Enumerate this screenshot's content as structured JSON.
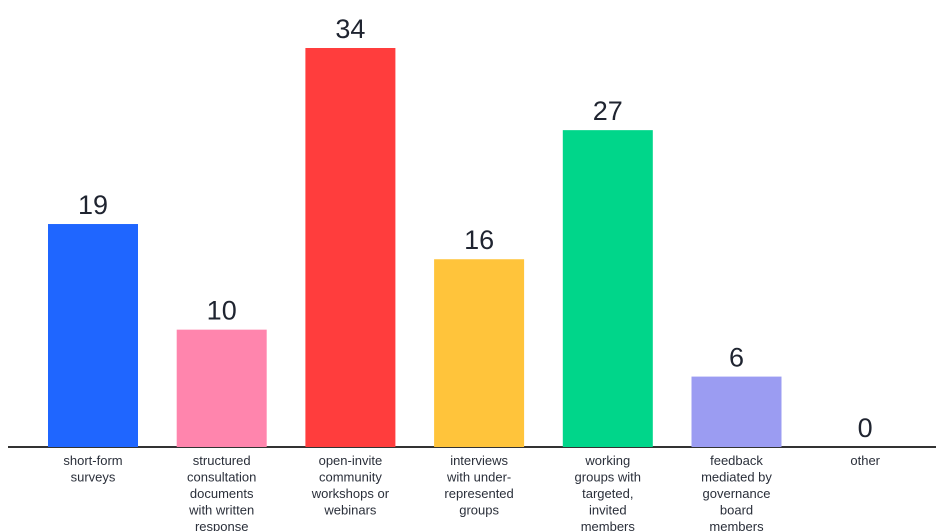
{
  "chart_data": {
    "type": "bar",
    "categories": [
      [
        "short-form",
        "surveys"
      ],
      [
        "structured",
        "consultation",
        "documents",
        "with written",
        "response"
      ],
      [
        "open-invite",
        "community",
        "workshops or",
        "webinars"
      ],
      [
        "interviews",
        "with under-",
        "represented",
        "groups"
      ],
      [
        "working",
        "groups with",
        "targeted,",
        "invited",
        "members"
      ],
      [
        "feedback",
        "mediated by",
        "governance",
        "board",
        "members"
      ],
      [
        "other"
      ]
    ],
    "values": [
      19,
      10,
      34,
      16,
      27,
      6,
      0
    ],
    "colors": [
      "#1f66ff",
      "#ff85ad",
      "#ff3d3d",
      "#ffc43b",
      "#00d68a",
      "#9b9cf2",
      "#d9d9d9"
    ],
    "ylim": [
      0,
      34
    ],
    "grid": false,
    "show_data_labels": true
  }
}
